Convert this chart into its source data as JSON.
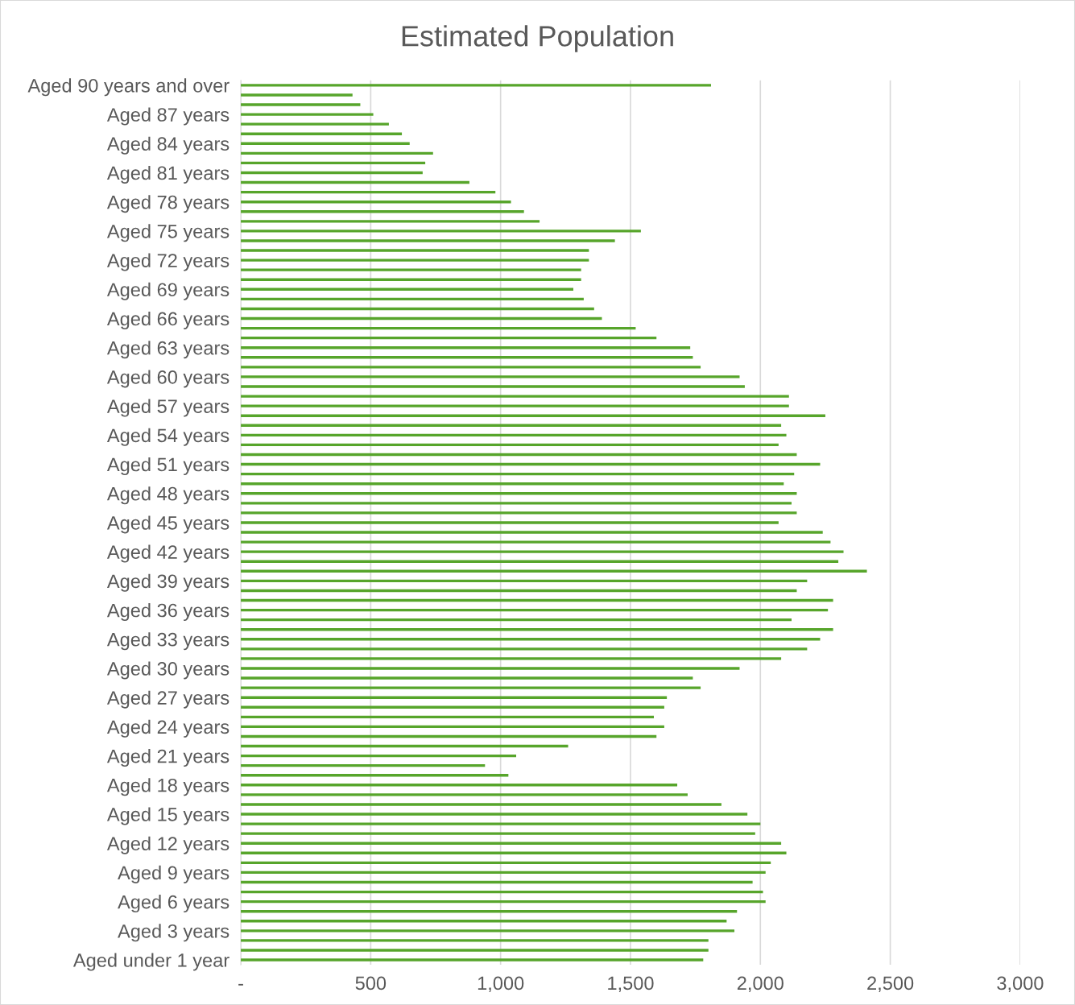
{
  "chart_data": {
    "type": "bar",
    "orientation": "horizontal",
    "title": "Estimated Population",
    "categories": [
      "Aged 90 years and over",
      null,
      null,
      "Aged 87 years",
      null,
      null,
      "Aged 84 years",
      null,
      null,
      "Aged 81 years",
      null,
      null,
      "Aged 78 years",
      null,
      null,
      "Aged 75 years",
      null,
      null,
      "Aged 72 years",
      null,
      null,
      "Aged 69 years",
      null,
      null,
      "Aged 66 years",
      null,
      null,
      "Aged 63 years",
      null,
      null,
      "Aged 60 years",
      null,
      null,
      "Aged 57 years",
      null,
      null,
      "Aged 54 years",
      null,
      null,
      "Aged 51 years",
      null,
      null,
      "Aged 48 years",
      null,
      null,
      "Aged 45 years",
      null,
      null,
      "Aged 42 years",
      null,
      null,
      "Aged 39 years",
      null,
      null,
      "Aged 36 years",
      null,
      null,
      "Aged 33 years",
      null,
      null,
      "Aged 30 years",
      null,
      null,
      "Aged 27 years",
      null,
      null,
      "Aged 24 years",
      null,
      null,
      "Aged 21 years",
      null,
      null,
      "Aged 18 years",
      null,
      null,
      "Aged 15 years",
      null,
      null,
      "Aged 12 years",
      null,
      null,
      "Aged 9 years",
      null,
      null,
      "Aged 6 years",
      null,
      null,
      "Aged 3 years",
      null,
      null,
      "Aged under 1 year"
    ],
    "values": [
      1810,
      430,
      460,
      510,
      570,
      620,
      650,
      740,
      710,
      700,
      880,
      980,
      1040,
      1090,
      1150,
      1540,
      1440,
      1340,
      1340,
      1310,
      1310,
      1280,
      1320,
      1360,
      1390,
      1520,
      1600,
      1730,
      1740,
      1770,
      1920,
      1940,
      2110,
      2110,
      2250,
      2080,
      2100,
      2070,
      2140,
      2230,
      2130,
      2090,
      2140,
      2120,
      2140,
      2070,
      2240,
      2270,
      2320,
      2300,
      2410,
      2180,
      2140,
      2280,
      2260,
      2120,
      2280,
      2230,
      2180,
      2080,
      1920,
      1740,
      1770,
      1640,
      1630,
      1590,
      1630,
      1600,
      1260,
      1060,
      940,
      1030,
      1680,
      1720,
      1850,
      1950,
      2000,
      1980,
      2080,
      2100,
      2040,
      2020,
      1970,
      2010,
      2020,
      1910,
      1870,
      1900,
      1800,
      1800,
      1780
    ],
    "color": "#57a52b",
    "xlim": [
      0,
      3000
    ],
    "xticks": [
      {
        "value": 0,
        "label": "-"
      },
      {
        "value": 500,
        "label": "500"
      },
      {
        "value": 1000,
        "label": "1,000"
      },
      {
        "value": 1500,
        "label": "1,500"
      },
      {
        "value": 2000,
        "label": "2,000"
      },
      {
        "value": 2500,
        "label": "2,500"
      },
      {
        "value": 3000,
        "label": "3,000"
      }
    ],
    "grid": "x",
    "legend": false
  }
}
